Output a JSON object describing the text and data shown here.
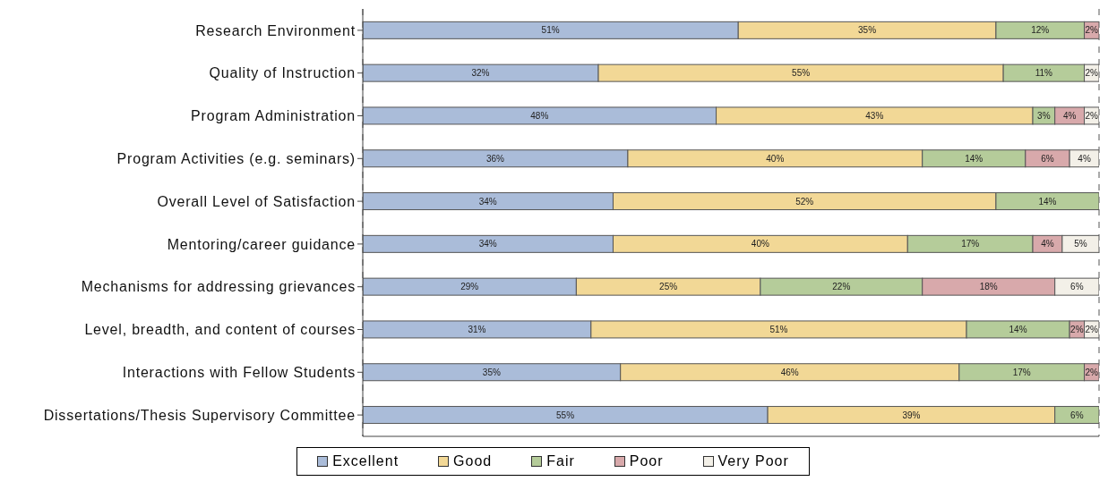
{
  "chart_data": {
    "type": "bar",
    "orientation": "horizontal",
    "stacked": true,
    "grid": "x",
    "legend": "bottom",
    "tick_labels": "y",
    "categories": [
      "Research Environment",
      "Quality of Instruction",
      "Program Administration",
      "Program Activities (e.g. seminars)",
      "Overall Level of Satisfaction",
      "Mentoring/career guidance",
      "Mechanisms for addressing grievances",
      "Level, breadth, and content of courses",
      "Interactions with Fellow Students",
      "Dissertations/Thesis Supervisory Committee"
    ],
    "xlim": [
      0,
      100
    ],
    "series": [
      {
        "name": "Excellent",
        "color": "#aabcd9",
        "values": [
          51,
          32,
          48,
          36,
          34,
          34,
          29,
          31,
          35,
          55
        ],
        "value_labels": [
          "51%",
          "32%",
          "48%",
          "36%",
          "34%",
          "34%",
          "29%",
          "31%",
          "35%",
          "55%"
        ]
      },
      {
        "name": "Good",
        "color": "#f2d896",
        "values": [
          35,
          55,
          43,
          40,
          52,
          40,
          25,
          51,
          46,
          39
        ],
        "value_labels": [
          "35%",
          "55%",
          "43%",
          "40%",
          "52%",
          "40%",
          "25%",
          "51%",
          "46%",
          "39%"
        ]
      },
      {
        "name": "Fair",
        "color": "#b5cc9a",
        "values": [
          12,
          11,
          3,
          14,
          14,
          17,
          22,
          14,
          17,
          6
        ],
        "value_labels": [
          "12%",
          "11%",
          "3%",
          "14%",
          "14%",
          "17%",
          "22%",
          "14%",
          "17%",
          "6%"
        ]
      },
      {
        "name": "Poor",
        "color": "#d8a9ab",
        "values": [
          2,
          null,
          4,
          6,
          null,
          4,
          18,
          2,
          2,
          null
        ],
        "value_labels": [
          "2%",
          null,
          "4%",
          "6%",
          null,
          "4%",
          "18%",
          "2%",
          "2%",
          null
        ]
      },
      {
        "name": "Very Poor",
        "color": "#f3f0e8",
        "values": [
          null,
          2,
          2,
          4,
          null,
          5,
          6,
          2,
          null,
          null
        ],
        "value_labels": [
          null,
          "2%",
          "2%",
          "4%",
          null,
          "5%",
          "6%",
          "2%",
          null,
          null
        ]
      }
    ]
  }
}
